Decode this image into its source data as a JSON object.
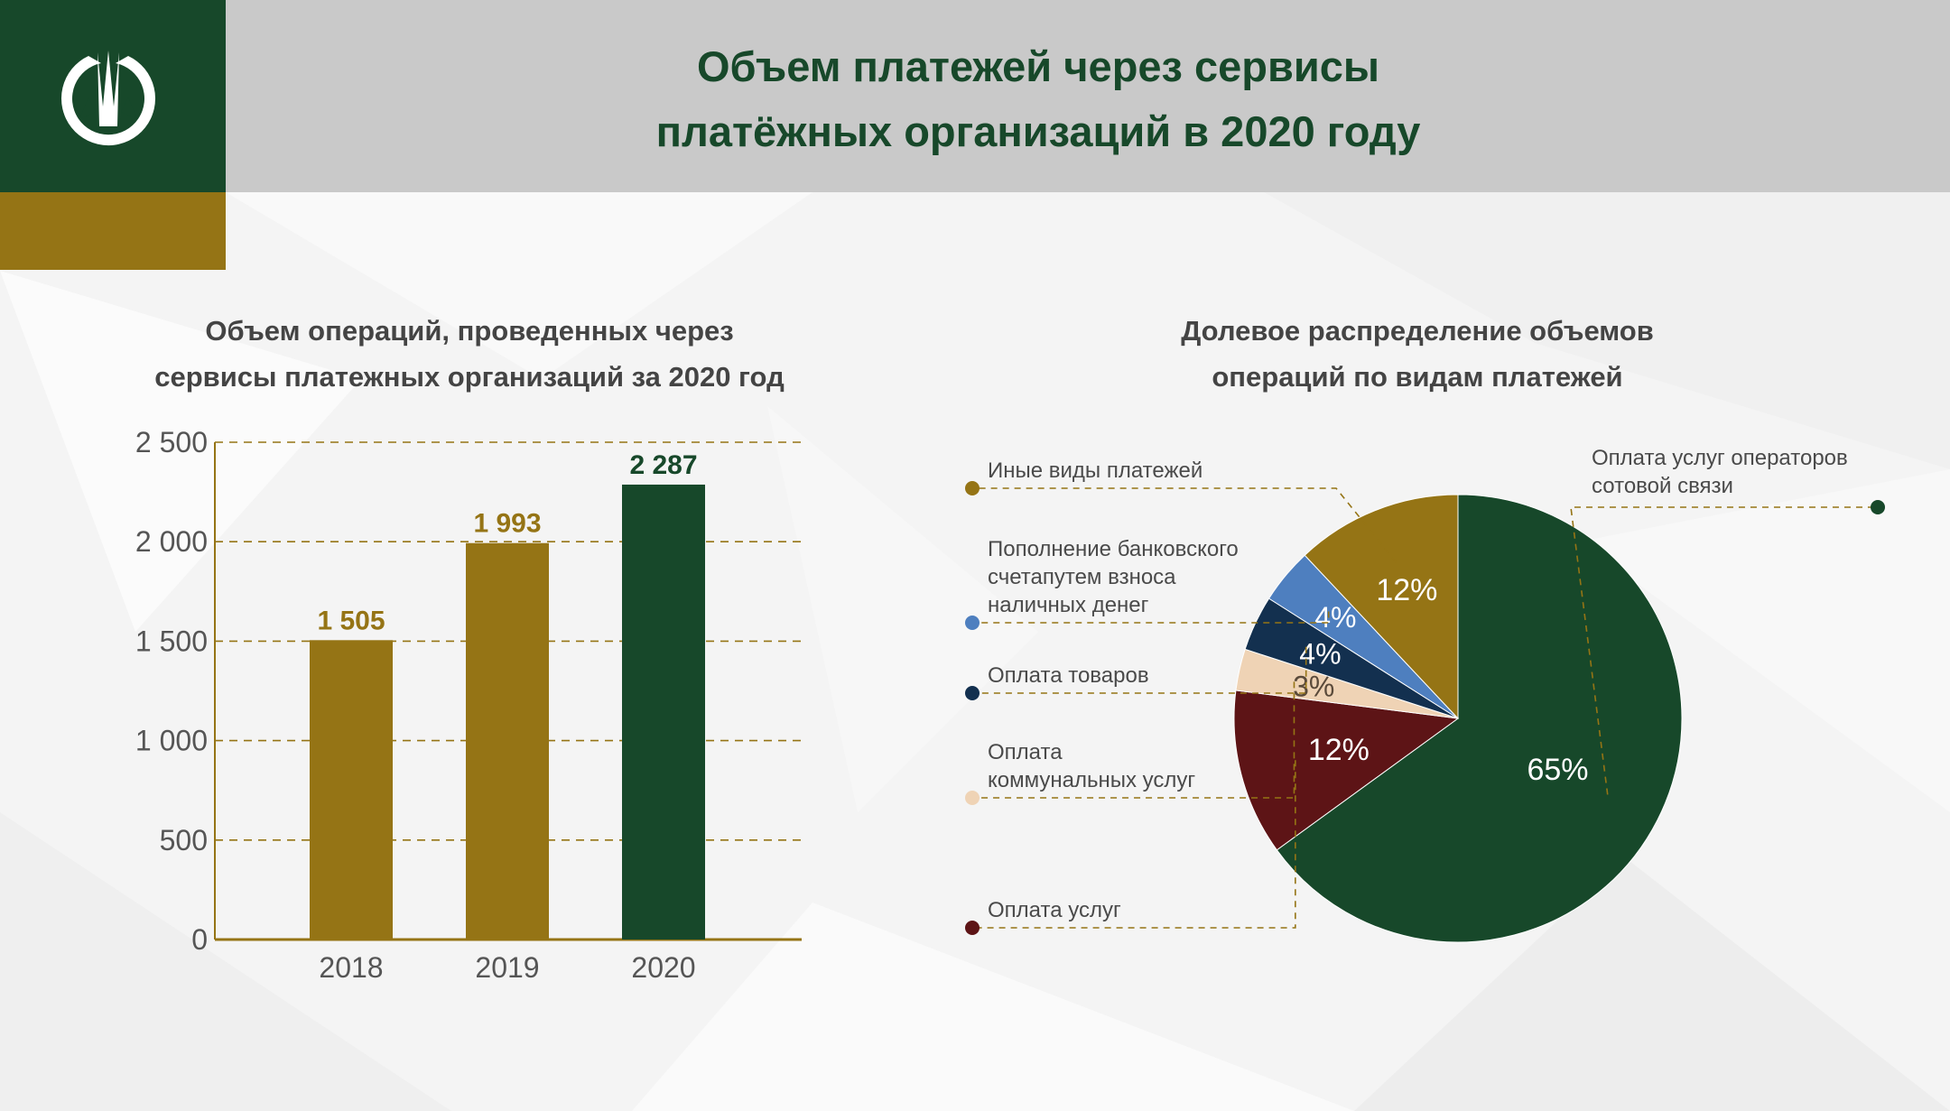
{
  "header": {
    "title_line1": "Объем платежей через сервисы",
    "title_line2": "платёжных организаций в 2020 году"
  },
  "colors": {
    "green": "#17482a",
    "gold": "#957415",
    "grey": "#c9c9c9",
    "blue": "#4e7fbf",
    "navy": "#13304f",
    "beige": "#efd3b5",
    "maroon": "#5d1416"
  },
  "chart_data": [
    {
      "type": "bar",
      "title_line1": "Объем операций, проведенных через",
      "title_line2": "сервисы платежных организаций за 2020 год",
      "categories": [
        "2018",
        "2019",
        "2020"
      ],
      "values": [
        1505,
        1993,
        2287
      ],
      "value_labels": [
        "1 505",
        "1 993",
        "2 287"
      ],
      "bar_colors": [
        "#957415",
        "#957415",
        "#17482a"
      ],
      "label_colors": [
        "#957415",
        "#957415",
        "#17482a"
      ],
      "ylim": [
        0,
        2500
      ],
      "yticks": [
        0,
        500,
        1000,
        1500,
        2000,
        2500
      ],
      "ytick_labels": [
        "0",
        "500",
        "1 000",
        "1 500",
        "2 000",
        "2 500"
      ],
      "grid": true,
      "xlabel": "",
      "ylabel": ""
    },
    {
      "type": "pie",
      "title_line1": "Долевое распределение объемов",
      "title_line2": "операций по видам платежей",
      "slices": [
        {
          "label_lines": [
            "Оплата услуг операторов",
            "сотовой связи"
          ],
          "value": 65,
          "value_label": "65%",
          "color": "#17482a"
        },
        {
          "label_lines": [
            "Оплата услуг"
          ],
          "value": 12,
          "value_label": "12%",
          "color": "#5d1416"
        },
        {
          "label_lines": [
            "Оплата",
            "коммунальных услуг"
          ],
          "value": 3,
          "value_label": "3%",
          "color": "#efd3b5"
        },
        {
          "label_lines": [
            "Оплата товаров"
          ],
          "value": 4,
          "value_label": "4%",
          "color": "#13304f"
        },
        {
          "label_lines": [
            "Пополнение банковского",
            "счетапутем взноса",
            "наличных денег"
          ],
          "value": 4,
          "value_label": "4%",
          "color": "#4e7fbf"
        },
        {
          "label_lines": [
            "Иные виды платежей"
          ],
          "value": 12,
          "value_label": "12%",
          "color": "#957415"
        }
      ]
    }
  ]
}
